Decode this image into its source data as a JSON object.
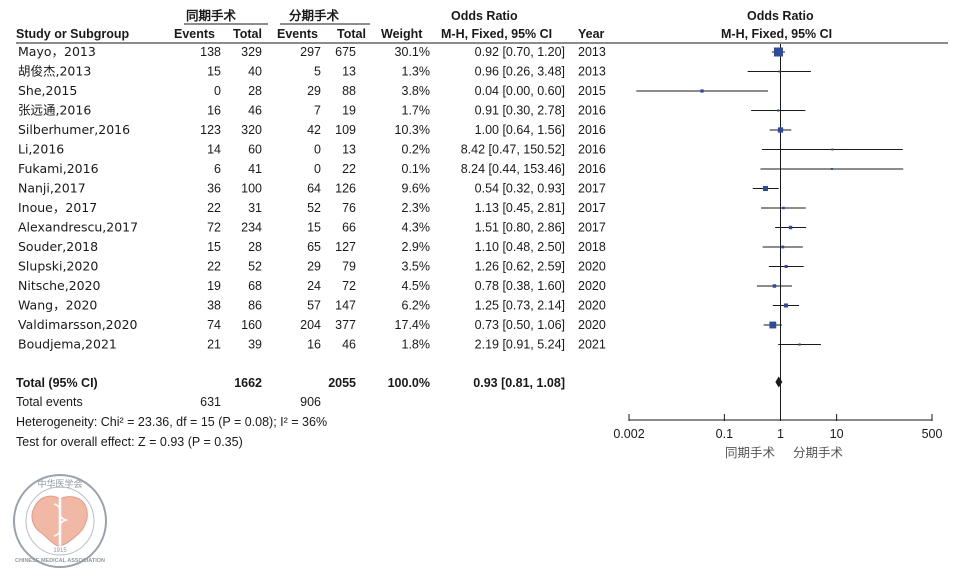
{
  "header": {
    "group1": "同期手术",
    "group2": "分期手术",
    "or_title": "Odds Ratio",
    "study": "Study or Subgroup",
    "events1": "Events",
    "total1": "Total",
    "events2": "Events",
    "total2": "Total",
    "weight": "Weight",
    "method": "M-H, Fixed, 95% CI",
    "year": "Year",
    "plot_title": "Odds Ratio",
    "plot_method": "M-H, Fixed, 95% CI"
  },
  "chart_data": {
    "type": "forest",
    "scale": "log",
    "xlim": [
      0.002,
      500
    ],
    "ticks": [
      {
        "value": 0.002,
        "label": "0.002"
      },
      {
        "value": 0.1,
        "label": "0.1"
      },
      {
        "value": 1,
        "label": "1"
      },
      {
        "value": 10,
        "label": "10"
      },
      {
        "value": 500,
        "label": "500"
      }
    ],
    "favours_left": "同期手术",
    "favours_right": "分期手术",
    "studies": [
      {
        "name": "Mayo，2013",
        "e1": "138",
        "t1": "329",
        "e2": "297",
        "t2": "675",
        "weight": "30.1%",
        "ci": "0.92 [0.70, 1.20]",
        "year": "2013",
        "or": 0.92,
        "lo": 0.7,
        "hi": 1.2,
        "w": 30.1
      },
      {
        "name": "胡俊杰,2013",
        "e1": "15",
        "t1": "40",
        "e2": "5",
        "t2": "13",
        "weight": "1.3%",
        "ci": "0.96 [0.26, 3.48]",
        "year": "2013",
        "or": 0.96,
        "lo": 0.26,
        "hi": 3.48,
        "w": 1.3
      },
      {
        "name": "She,2015",
        "e1": "0",
        "t1": "28",
        "e2": "29",
        "t2": "88",
        "weight": "3.8%",
        "ci": "0.04 [0.00, 0.60]",
        "year": "2015",
        "or": 0.04,
        "lo": 0.0027,
        "hi": 0.6,
        "w": 3.8
      },
      {
        "name": "张远通,2016",
        "e1": "16",
        "t1": "46",
        "e2": "7",
        "t2": "19",
        "weight": "1.7%",
        "ci": "0.91 [0.30, 2.78]",
        "year": "2016",
        "or": 0.91,
        "lo": 0.3,
        "hi": 2.78,
        "w": 1.7
      },
      {
        "name": "Silberhumer,2016",
        "e1": "123",
        "t1": "320",
        "e2": "42",
        "t2": "109",
        "weight": "10.3%",
        "ci": "1.00 [0.64, 1.56]",
        "year": "2016",
        "or": 1.0,
        "lo": 0.64,
        "hi": 1.56,
        "w": 10.3
      },
      {
        "name": "Li,2016",
        "e1": "14",
        "t1": "60",
        "e2": "0",
        "t2": "13",
        "weight": "0.2%",
        "ci": "8.42 [0.47, 150.52]",
        "year": "2016",
        "or": 8.42,
        "lo": 0.47,
        "hi": 150.52,
        "w": 0.2
      },
      {
        "name": "Fukami,2016",
        "e1": "6",
        "t1": "41",
        "e2": "0",
        "t2": "22",
        "weight": "0.1%",
        "ci": "8.24 [0.44, 153.46]",
        "year": "2016",
        "or": 8.24,
        "lo": 0.44,
        "hi": 153.46,
        "w": 0.1
      },
      {
        "name": "Nanji,2017",
        "e1": "36",
        "t1": "100",
        "e2": "64",
        "t2": "126",
        "weight": "9.6%",
        "ci": "0.54 [0.32, 0.93]",
        "year": "2017",
        "or": 0.54,
        "lo": 0.32,
        "hi": 0.93,
        "w": 9.6
      },
      {
        "name": "Inoue，2017",
        "e1": "22",
        "t1": "31",
        "e2": "52",
        "t2": "76",
        "weight": "2.3%",
        "ci": "1.13 [0.45, 2.81]",
        "year": "2017",
        "or": 1.13,
        "lo": 0.45,
        "hi": 2.81,
        "w": 2.3
      },
      {
        "name": "Alexandrescu,2017",
        "e1": "72",
        "t1": "234",
        "e2": "15",
        "t2": "66",
        "weight": "4.3%",
        "ci": "1.51 [0.80, 2.86]",
        "year": "2017",
        "or": 1.51,
        "lo": 0.8,
        "hi": 2.86,
        "w": 4.3
      },
      {
        "name": "Souder,2018",
        "e1": "15",
        "t1": "28",
        "e2": "65",
        "t2": "127",
        "weight": "2.9%",
        "ci": "1.10 [0.48, 2.50]",
        "year": "2018",
        "or": 1.1,
        "lo": 0.48,
        "hi": 2.5,
        "w": 2.9
      },
      {
        "name": "Slupski,2020",
        "e1": "22",
        "t1": "52",
        "e2": "29",
        "t2": "79",
        "weight": "3.5%",
        "ci": "1.26 [0.62, 2.59]",
        "year": "2020",
        "or": 1.26,
        "lo": 0.62,
        "hi": 2.59,
        "w": 3.5
      },
      {
        "name": "Nitsche,2020",
        "e1": "19",
        "t1": "68",
        "e2": "24",
        "t2": "72",
        "weight": "4.5%",
        "ci": "0.78 [0.38, 1.60]",
        "year": "2020",
        "or": 0.78,
        "lo": 0.38,
        "hi": 1.6,
        "w": 4.5
      },
      {
        "name": "Wang，2020",
        "e1": "38",
        "t1": "86",
        "e2": "57",
        "t2": "147",
        "weight": "6.2%",
        "ci": "1.25 [0.73, 2.14]",
        "year": "2020",
        "or": 1.25,
        "lo": 0.73,
        "hi": 2.14,
        "w": 6.2
      },
      {
        "name": "Valdimarsson,2020",
        "e1": "74",
        "t1": "160",
        "e2": "204",
        "t2": "377",
        "weight": "17.4%",
        "ci": "0.73 [0.50, 1.06]",
        "year": "2020",
        "or": 0.73,
        "lo": 0.5,
        "hi": 1.06,
        "w": 17.4
      },
      {
        "name": "Boudjema,2021",
        "e1": "21",
        "t1": "39",
        "e2": "16",
        "t2": "46",
        "weight": "1.8%",
        "ci": "2.19 [0.91, 5.24]",
        "year": "2021",
        "or": 2.19,
        "lo": 0.91,
        "hi": 5.24,
        "w": 1.8
      }
    ],
    "total": {
      "label": "Total (95% CI)",
      "t1": "1662",
      "t2": "2055",
      "weight": "100.0%",
      "ci": "0.93 [0.81, 1.08]",
      "or": 0.93,
      "lo": 0.81,
      "hi": 1.08
    },
    "total_events": {
      "label": "Total events",
      "e1": "631",
      "e2": "906"
    },
    "heterogeneity": "Heterogeneity: Chi² = 23.36, df = 15 (P = 0.08); I² = 36%",
    "overall_effect": "Test for overall effect: Z = 0.93 (P = 0.35)"
  },
  "logo": {
    "top_text": "中华医学会",
    "bottom_text": "CHINESE MEDICAL ASSOCIATION",
    "year": "1915"
  }
}
